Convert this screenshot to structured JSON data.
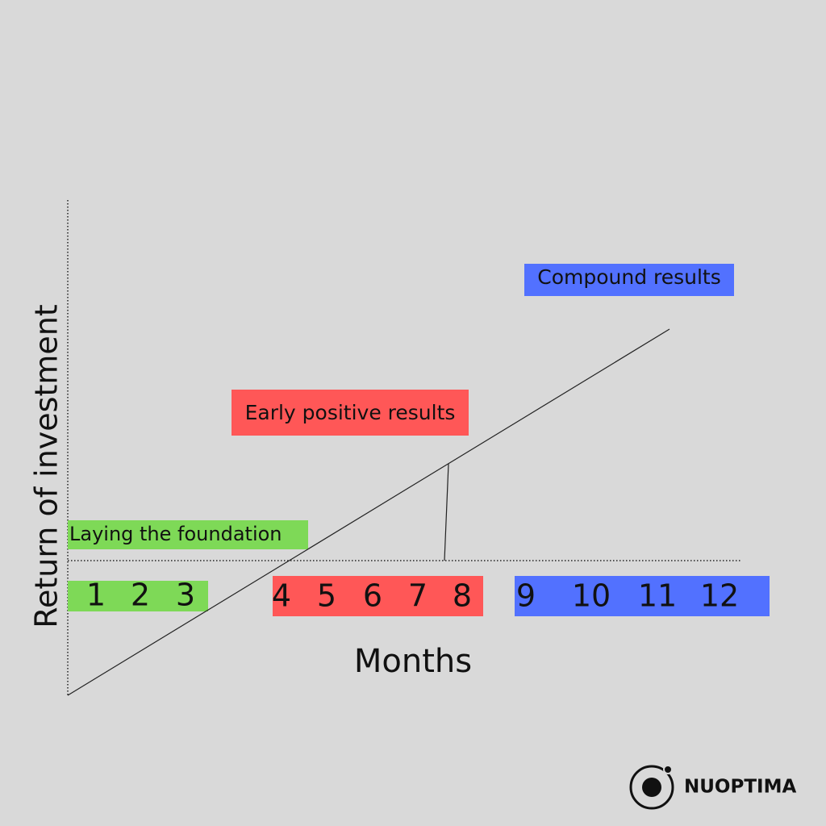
{
  "y_axis_label": "Return of investment",
  "x_axis_label": "Months",
  "phases": [
    {
      "label": "Laying the foundation",
      "months": [
        "1",
        "2",
        "3"
      ]
    },
    {
      "label": "Early positive results",
      "months": [
        "4",
        "5",
        "6",
        "7",
        "8"
      ]
    },
    {
      "label": "Compound results",
      "months": [
        "9",
        "10",
        "11",
        "12"
      ]
    }
  ],
  "logo": {
    "text": "NUOPTIMA"
  }
}
